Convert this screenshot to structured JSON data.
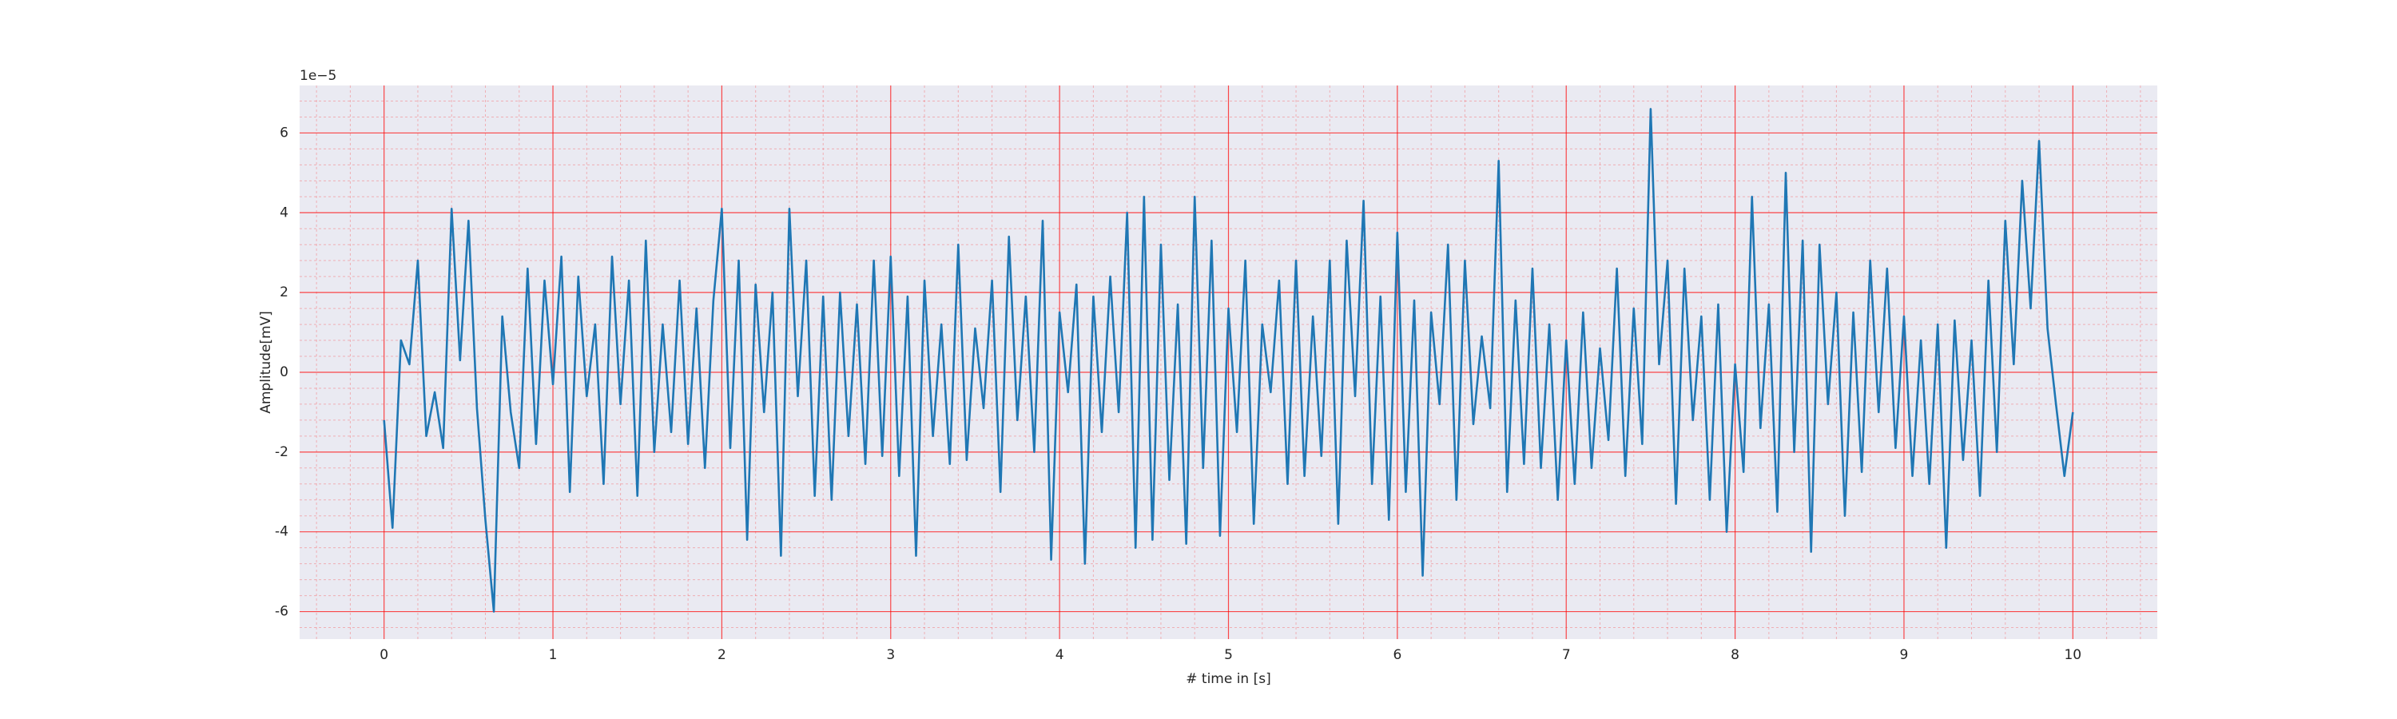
{
  "chart_data": {
    "type": "line",
    "x_label": "# time in [s]",
    "y_label": "Amplitude[mV]",
    "y_offset_label": "1e−5",
    "xlim": [
      -0.5,
      10.5
    ],
    "xticks": [
      0,
      1,
      2,
      3,
      4,
      5,
      6,
      7,
      8,
      9,
      10
    ],
    "ylim": [
      -6.69,
      7.19
    ],
    "yticks": [
      -6,
      -4,
      -2,
      0,
      2,
      4,
      6
    ],
    "grid": true,
    "grid_color": "#ff0000",
    "minor_grid": true,
    "minor_per_major": 5,
    "background": "#eaeaf2",
    "color": "#1f77b4",
    "x": [
      0,
      0.05,
      0.1,
      0.15,
      0.2,
      0.25,
      0.3,
      0.35,
      0.4,
      0.45,
      0.5,
      0.55,
      0.6,
      0.65,
      0.7,
      0.75,
      0.8,
      0.85,
      0.9,
      0.95,
      1,
      1.05,
      1.1,
      1.15,
      1.2,
      1.25,
      1.3,
      1.35,
      1.4,
      1.45,
      1.5,
      1.55,
      1.6,
      1.65,
      1.7,
      1.75,
      1.8,
      1.85,
      1.9,
      1.95,
      2,
      2.05,
      2.1,
      2.15,
      2.2,
      2.25,
      2.3,
      2.35,
      2.4,
      2.45,
      2.5,
      2.55,
      2.6,
      2.65,
      2.7,
      2.75,
      2.8,
      2.85,
      2.9,
      2.95,
      3,
      3.05,
      3.1,
      3.15,
      3.2,
      3.25,
      3.3,
      3.35,
      3.4,
      3.45,
      3.5,
      3.55,
      3.6,
      3.65,
      3.7,
      3.75,
      3.8,
      3.85,
      3.9,
      3.95,
      4,
      4.05,
      4.1,
      4.15,
      4.2,
      4.25,
      4.3,
      4.35,
      4.4,
      4.45,
      4.5,
      4.55,
      4.6,
      4.65,
      4.7,
      4.75,
      4.8,
      4.85,
      4.9,
      4.95,
      5,
      5.05,
      5.1,
      5.15,
      5.2,
      5.25,
      5.3,
      5.35,
      5.4,
      5.45,
      5.5,
      5.55,
      5.6,
      5.65,
      5.7,
      5.75,
      5.8,
      5.85,
      5.9,
      5.95,
      6,
      6.05,
      6.1,
      6.15,
      6.2,
      6.25,
      6.3,
      6.35,
      6.4,
      6.45,
      6.5,
      6.55,
      6.6,
      6.65,
      6.7,
      6.75,
      6.8,
      6.85,
      6.9,
      6.95,
      7,
      7.05,
      7.1,
      7.15,
      7.2,
      7.25,
      7.3,
      7.35,
      7.4,
      7.45,
      7.5,
      7.55,
      7.6,
      7.65,
      7.7,
      7.75,
      7.8,
      7.85,
      7.9,
      7.95,
      8,
      8.05,
      8.1,
      8.15,
      8.2,
      8.25,
      8.3,
      8.35,
      8.4,
      8.45,
      8.5,
      8.55,
      8.6,
      8.65,
      8.7,
      8.75,
      8.8,
      8.85,
      8.9,
      8.95,
      9,
      9.05,
      9.1,
      9.15,
      9.2,
      9.25,
      9.3,
      9.35,
      9.4,
      9.45,
      9.5,
      9.55,
      9.6,
      9.65,
      9.7,
      9.75,
      9.8,
      9.85,
      9.9,
      9.95,
      10
    ],
    "values": [
      -1.2,
      -3.9,
      0.8,
      0.2,
      2.8,
      -1.6,
      -0.5,
      -1.9,
      4.1,
      0.3,
      3.8,
      -0.9,
      -3.7,
      -6.0,
      1.4,
      -1.0,
      -2.4,
      2.6,
      -1.8,
      2.3,
      -0.3,
      2.9,
      -3.0,
      2.4,
      -0.6,
      1.2,
      -2.8,
      2.9,
      -0.8,
      2.3,
      -3.1,
      3.3,
      -2.0,
      1.2,
      -1.5,
      2.3,
      -1.8,
      1.6,
      -2.4,
      1.8,
      4.1,
      -1.9,
      2.8,
      -4.2,
      2.2,
      -1.0,
      2.0,
      -4.6,
      4.1,
      -0.6,
      2.8,
      -3.1,
      1.9,
      -3.2,
      2.0,
      -1.6,
      1.7,
      -2.3,
      2.8,
      -2.1,
      2.9,
      -2.6,
      1.9,
      -4.6,
      2.3,
      -1.6,
      1.2,
      -2.3,
      3.2,
      -2.2,
      1.1,
      -0.9,
      2.3,
      -3.0,
      3.4,
      -1.2,
      1.9,
      -2.0,
      3.8,
      -4.7,
      1.5,
      -0.5,
      2.2,
      -4.8,
      1.9,
      -1.5,
      2.4,
      -1.0,
      4.0,
      -4.4,
      4.4,
      -4.2,
      3.2,
      -2.7,
      1.7,
      -4.3,
      4.4,
      -2.4,
      3.3,
      -4.1,
      1.6,
      -1.5,
      2.8,
      -3.8,
      1.2,
      -0.5,
      2.3,
      -2.8,
      2.8,
      -2.6,
      1.4,
      -2.1,
      2.8,
      -3.8,
      3.3,
      -0.6,
      4.3,
      -2.8,
      1.9,
      -3.7,
      3.5,
      -3.0,
      1.8,
      -5.1,
      1.5,
      -0.8,
      3.2,
      -3.2,
      2.8,
      -1.3,
      0.9,
      -0.9,
      5.3,
      -3.0,
      1.8,
      -2.3,
      2.6,
      -2.4,
      1.2,
      -3.2,
      0.8,
      -2.8,
      1.5,
      -2.4,
      0.6,
      -1.7,
      2.6,
      -2.6,
      1.6,
      -1.8,
      6.6,
      0.2,
      2.8,
      -3.3,
      2.6,
      -1.2,
      1.4,
      -3.2,
      1.7,
      -4.0,
      0.2,
      -2.5,
      4.4,
      -1.4,
      1.7,
      -3.5,
      5.0,
      -2.0,
      3.3,
      -4.5,
      3.2,
      -0.8,
      2.0,
      -3.6,
      1.5,
      -2.5,
      2.8,
      -1.0,
      2.6,
      -1.9,
      1.4,
      -2.6,
      0.8,
      -2.8,
      1.2,
      -4.4,
      1.3,
      -2.2,
      0.8,
      -3.1,
      2.3,
      -2.0,
      3.8,
      0.2,
      4.8,
      1.6,
      5.8,
      1.1,
      -0.8,
      -2.6,
      -1.0
    ]
  }
}
